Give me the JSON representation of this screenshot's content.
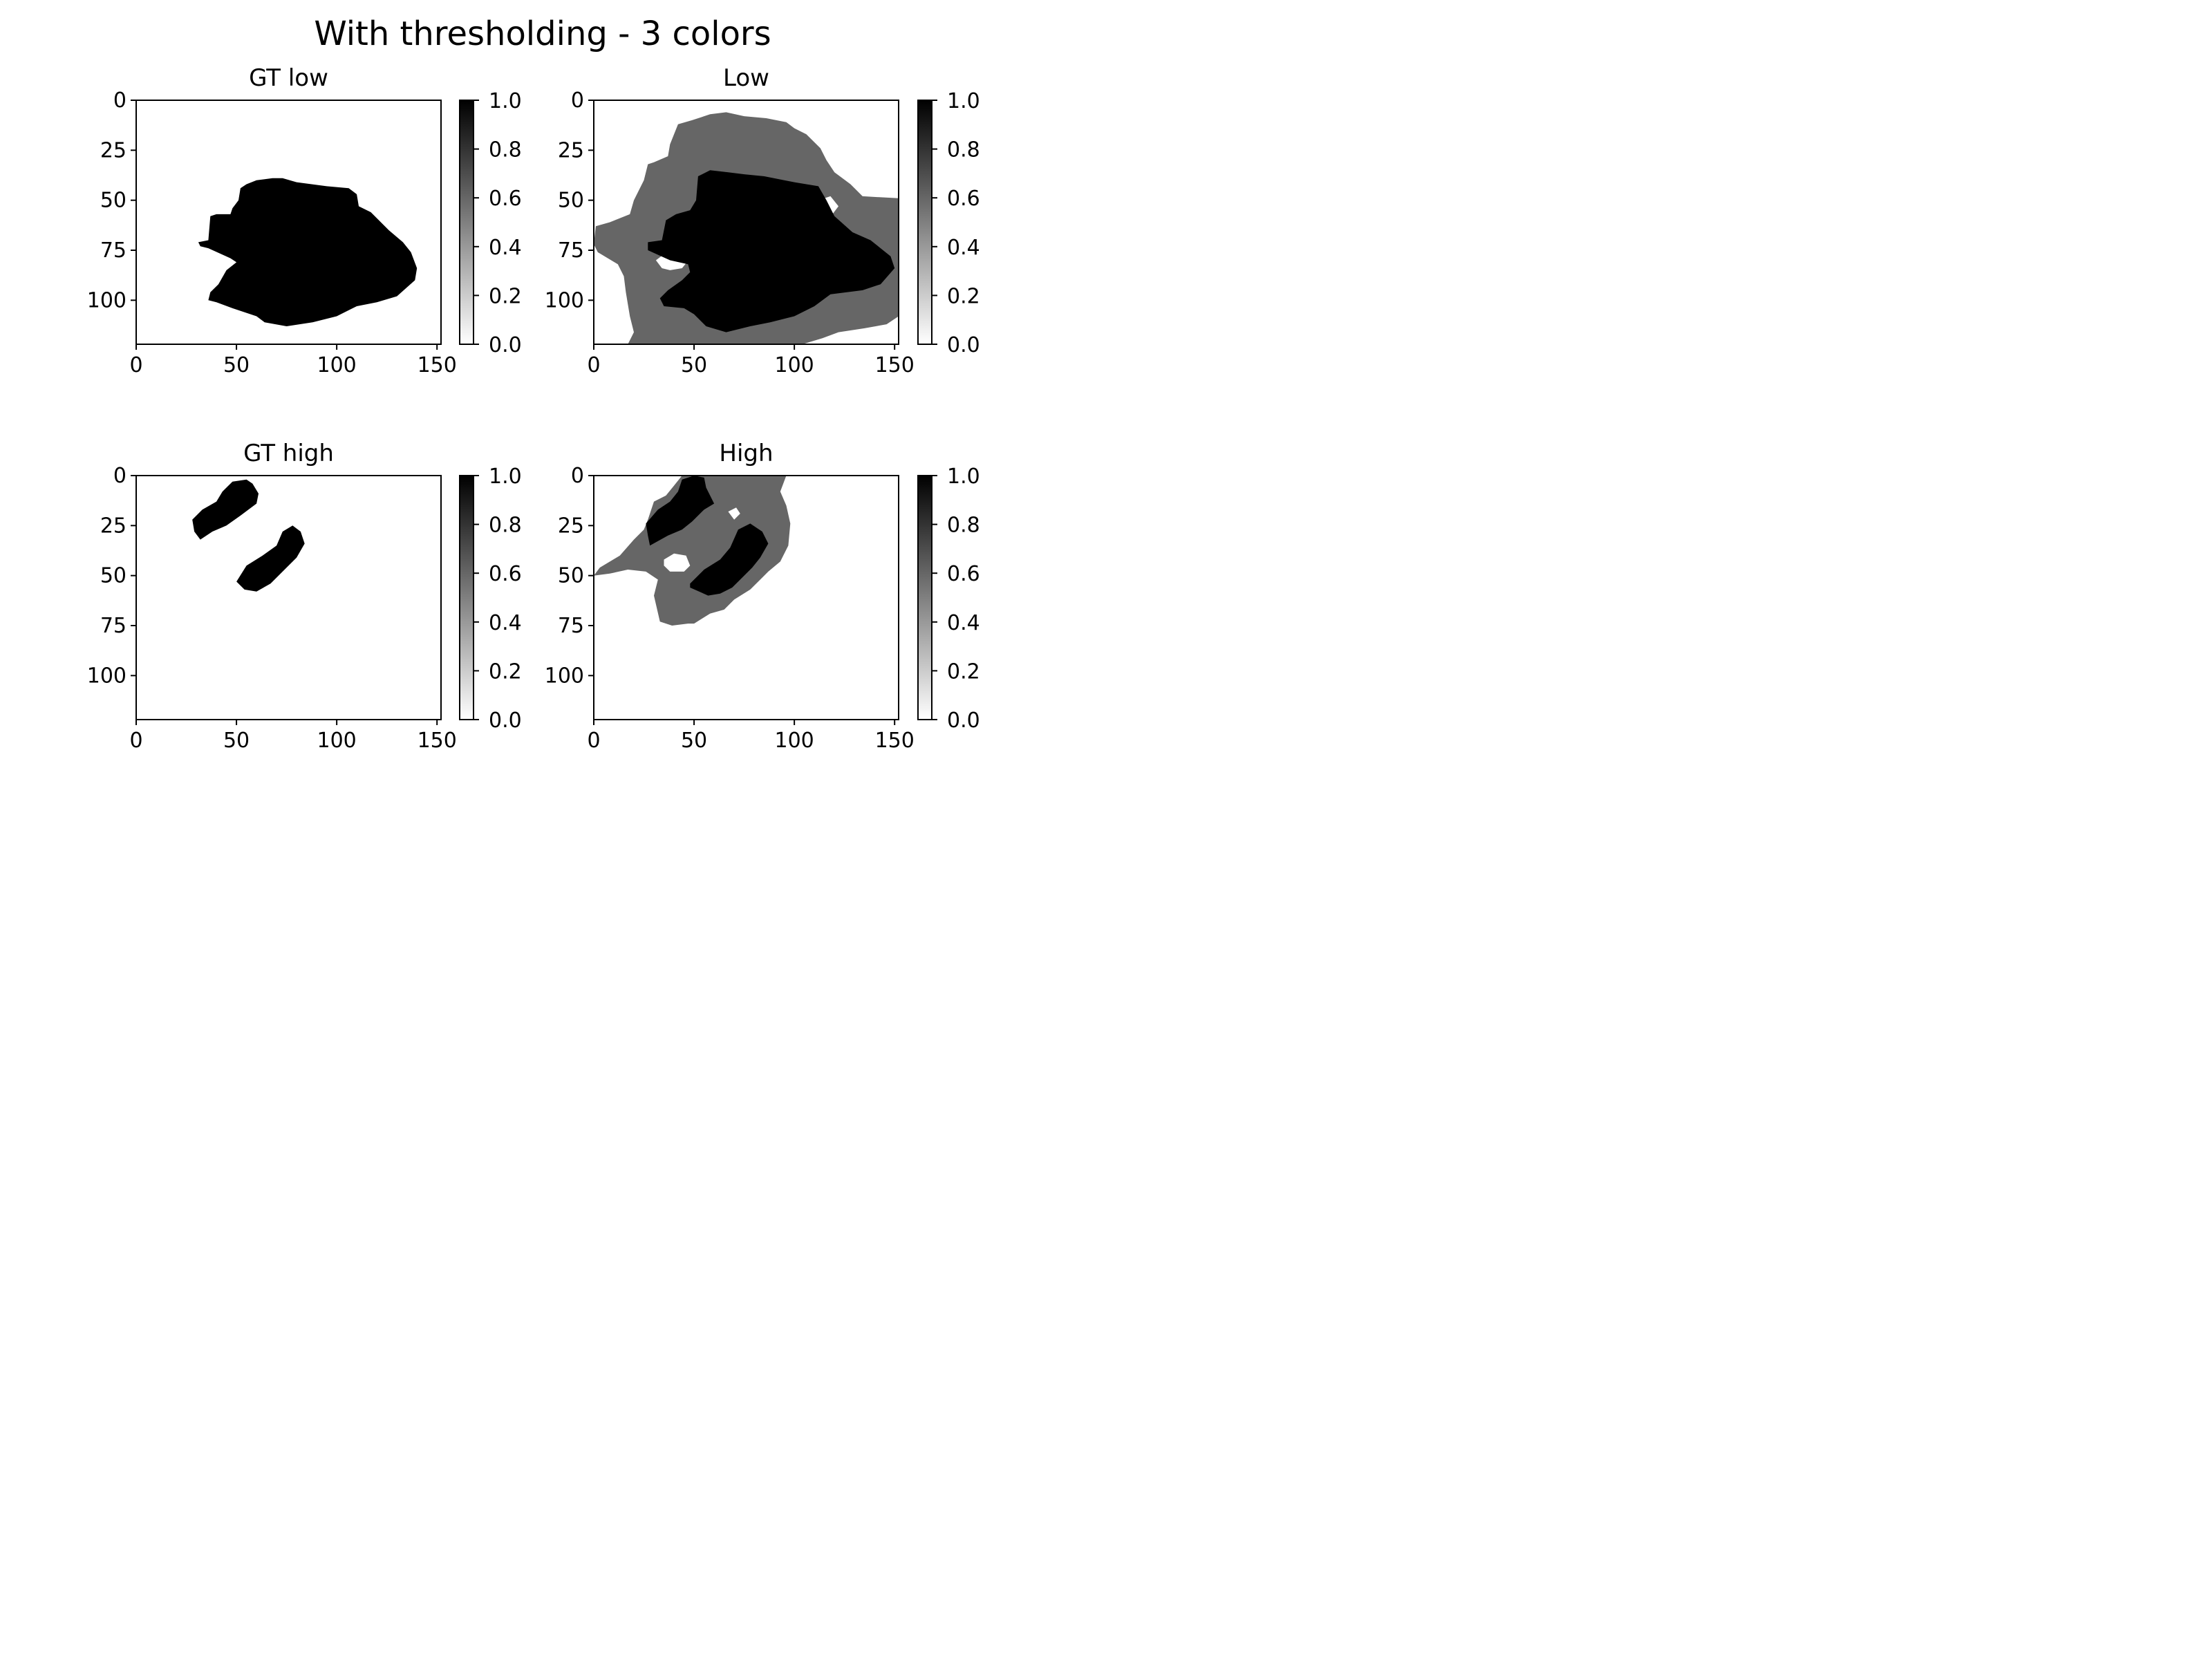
{
  "suptitle": "With thresholding - 3 colors",
  "colors": {
    "background": "#ffffff",
    "foreground": "#000000",
    "mid_gray": "#999999",
    "axes": "#000000"
  },
  "chart_data": [
    {
      "type": "heatmap",
      "title": "GT low",
      "xlim": [
        0,
        152
      ],
      "ylim": [
        122,
        0
      ],
      "xticks": [
        0,
        50,
        100,
        150
      ],
      "yticks": [
        0,
        25,
        50,
        75,
        100
      ],
      "xtick_labels": [
        "0",
        "50",
        "100",
        "150"
      ],
      "ytick_labels": [
        "0",
        "25",
        "50",
        "75",
        "100"
      ],
      "colorbar": {
        "cmap": "gray_r",
        "range": [
          0.0,
          1.0
        ],
        "ticks": [
          "0.0",
          "0.2",
          "0.4",
          "0.6",
          "0.8",
          "1.0"
        ]
      },
      "regions": [
        {
          "value": 1.0,
          "polygon": [
            [
              52,
              44
            ],
            [
              55,
              42
            ],
            [
              60,
              40
            ],
            [
              68,
              39
            ],
            [
              73,
              39
            ],
            [
              80,
              41
            ],
            [
              95,
              43
            ],
            [
              106,
              44
            ],
            [
              110,
              47
            ],
            [
              111,
              53
            ],
            [
              117,
              56
            ],
            [
              126,
              65
            ],
            [
              133,
              71
            ],
            [
              137,
              76
            ],
            [
              140,
              84
            ],
            [
              139,
              90
            ],
            [
              130,
              98
            ],
            [
              120,
              101
            ],
            [
              110,
              103
            ],
            [
              100,
              108
            ],
            [
              88,
              111
            ],
            [
              75,
              113
            ],
            [
              64,
              111
            ],
            [
              60,
              108
            ],
            [
              48,
              104
            ],
            [
              40,
              101
            ],
            [
              36,
              100
            ],
            [
              37,
              96
            ],
            [
              41,
              92
            ],
            [
              45,
              85
            ],
            [
              50,
              81
            ],
            [
              47,
              79
            ],
            [
              36,
              74
            ],
            [
              32,
              73
            ],
            [
              31,
              71
            ],
            [
              36,
              70
            ],
            [
              37,
              58
            ],
            [
              40,
              57
            ],
            [
              47,
              57
            ],
            [
              48,
              54
            ],
            [
              51,
              50
            ]
          ]
        }
      ]
    },
    {
      "type": "heatmap",
      "title": "Low",
      "xlim": [
        0,
        152
      ],
      "ylim": [
        122,
        0
      ],
      "xticks": [
        0,
        50,
        100,
        150
      ],
      "yticks": [
        0,
        25,
        50,
        75,
        100
      ],
      "xtick_labels": [
        "0",
        "50",
        "100",
        "150"
      ],
      "ytick_labels": [
        "0",
        "25",
        "50",
        "75",
        "100"
      ],
      "colorbar": {
        "cmap": "gray_r",
        "range": [
          0.0,
          1.0
        ],
        "ticks": [
          "0.0",
          "0.2",
          "0.4",
          "0.6",
          "0.8",
          "1.0"
        ]
      },
      "regions": [
        {
          "value": 0.6,
          "polygon": [
            [
              42,
              12
            ],
            [
              49,
              10
            ],
            [
              58,
              7
            ],
            [
              66,
              6
            ],
            [
              75,
              8
            ],
            [
              86,
              9
            ],
            [
              96,
              11
            ],
            [
              100,
              14
            ],
            [
              106,
              17
            ],
            [
              113,
              24
            ],
            [
              116,
              30
            ],
            [
              120,
              36
            ],
            [
              128,
              42
            ],
            [
              134,
              48
            ],
            [
              152,
              49
            ],
            [
              152,
              108
            ],
            [
              146,
              112
            ],
            [
              135,
              114
            ],
            [
              122,
              116
            ],
            [
              114,
              119
            ],
            [
              104,
              122
            ],
            [
              17,
              122
            ],
            [
              20,
              116
            ],
            [
              18,
              108
            ],
            [
              16,
              96
            ],
            [
              15,
              88
            ],
            [
              12,
              82
            ],
            [
              2,
              76
            ],
            [
              0,
              72
            ],
            [
              1,
              63
            ],
            [
              8,
              61
            ],
            [
              18,
              57
            ],
            [
              20,
              50
            ],
            [
              25,
              40
            ],
            [
              27,
              32
            ],
            [
              30,
              31
            ],
            [
              37,
              28
            ],
            [
              38,
              22
            ]
          ]
        },
        {
          "value": 0.0,
          "polygon": [
            [
              31,
              80
            ],
            [
              35,
              77
            ],
            [
              44,
              76
            ],
            [
              48,
              79
            ],
            [
              44,
              84
            ],
            [
              38,
              85
            ],
            [
              34,
              84
            ]
          ]
        },
        {
          "value": 0.0,
          "polygon": [
            [
              112,
              50
            ],
            [
              118,
              48
            ],
            [
              122,
              53
            ],
            [
              119,
              57
            ],
            [
              113,
              55
            ]
          ]
        },
        {
          "value": 1.0,
          "polygon": [
            [
              52,
              38
            ],
            [
              58,
              35
            ],
            [
              67,
              36
            ],
            [
              75,
              37
            ],
            [
              85,
              38
            ],
            [
              100,
              41
            ],
            [
              112,
              43
            ],
            [
              116,
              50
            ],
            [
              120,
              58
            ],
            [
              129,
              66
            ],
            [
              138,
              70
            ],
            [
              148,
              78
            ],
            [
              150,
              84
            ],
            [
              143,
              92
            ],
            [
              134,
              95
            ],
            [
              118,
              97
            ],
            [
              110,
              103
            ],
            [
              100,
              108
            ],
            [
              88,
              111
            ],
            [
              78,
              113
            ],
            [
              66,
              116
            ],
            [
              56,
              113
            ],
            [
              50,
              107
            ],
            [
              45,
              104
            ],
            [
              35,
              103
            ],
            [
              33,
              99
            ],
            [
              37,
              95
            ],
            [
              44,
              90
            ],
            [
              48,
              86
            ],
            [
              47,
              82
            ],
            [
              38,
              80
            ],
            [
              27,
              75
            ],
            [
              27,
              71
            ],
            [
              34,
              70
            ],
            [
              36,
              60
            ],
            [
              41,
              57
            ],
            [
              48,
              55
            ],
            [
              51,
              50
            ]
          ]
        }
      ]
    },
    {
      "type": "heatmap",
      "title": "GT high",
      "xlim": [
        0,
        152
      ],
      "ylim": [
        122,
        0
      ],
      "xticks": [
        0,
        50,
        100,
        150
      ],
      "yticks": [
        0,
        25,
        50,
        75,
        100
      ],
      "xtick_labels": [
        "0",
        "50",
        "100",
        "150"
      ],
      "ytick_labels": [
        "0",
        "25",
        "50",
        "75",
        "100"
      ],
      "colorbar": {
        "cmap": "gray_r",
        "range": [
          0.0,
          1.0
        ],
        "ticks": [
          "0.0",
          "0.2",
          "0.4",
          "0.6",
          "0.8",
          "1.0"
        ]
      },
      "regions": [
        {
          "value": 1.0,
          "polygon": [
            [
              28,
              22
            ],
            [
              33,
              17
            ],
            [
              40,
              13
            ],
            [
              43,
              8
            ],
            [
              48,
              3
            ],
            [
              55,
              2
            ],
            [
              58,
              4
            ],
            [
              61,
              9
            ],
            [
              60,
              14
            ],
            [
              52,
              20
            ],
            [
              45,
              25
            ],
            [
              38,
              28
            ],
            [
              32,
              32
            ],
            [
              29,
              28
            ]
          ]
        },
        {
          "value": 1.0,
          "polygon": [
            [
              50,
              53
            ],
            [
              55,
              45
            ],
            [
              63,
              40
            ],
            [
              70,
              35
            ],
            [
              73,
              28
            ],
            [
              78,
              25
            ],
            [
              82,
              28
            ],
            [
              84,
              34
            ],
            [
              80,
              41
            ],
            [
              73,
              48
            ],
            [
              67,
              54
            ],
            [
              60,
              58
            ],
            [
              54,
              57
            ]
          ]
        }
      ]
    },
    {
      "type": "heatmap",
      "title": "High",
      "xlim": [
        0,
        152
      ],
      "ylim": [
        122,
        0
      ],
      "xticks": [
        0,
        50,
        100,
        150
      ],
      "yticks": [
        0,
        25,
        50,
        75,
        100
      ],
      "xtick_labels": [
        "0",
        "50",
        "100",
        "150"
      ],
      "ytick_labels": [
        "0",
        "25",
        "50",
        "75",
        "100"
      ],
      "colorbar": {
        "cmap": "gray_r",
        "range": [
          0.0,
          1.0
        ],
        "ticks": [
          "0.0",
          "0.2",
          "0.4",
          "0.6",
          "0.8",
          "1.0"
        ]
      },
      "regions": [
        {
          "value": 0.6,
          "polygon": [
            [
              30,
              13
            ],
            [
              36,
              10
            ],
            [
              40,
              5
            ],
            [
              44,
              0
            ],
            [
              96,
              0
            ],
            [
              93,
              8
            ],
            [
              96,
              15
            ],
            [
              98,
              24
            ],
            [
              97,
              35
            ],
            [
              93,
              43
            ],
            [
              87,
              48
            ],
            [
              84,
              51
            ],
            [
              78,
              57
            ],
            [
              70,
              62
            ],
            [
              65,
              67
            ],
            [
              58,
              69
            ],
            [
              50,
              74
            ],
            [
              47,
              74
            ],
            [
              39,
              75
            ],
            [
              33,
              73
            ],
            [
              30,
              60
            ],
            [
              32,
              52
            ],
            [
              26,
              48
            ],
            [
              17,
              47
            ],
            [
              8,
              49
            ],
            [
              0,
              50
            ],
            [
              3,
              46
            ],
            [
              13,
              40
            ],
            [
              20,
              32
            ],
            [
              25,
              27
            ],
            [
              27,
              22
            ]
          ]
        },
        {
          "value": 0.0,
          "polygon": [
            [
              35,
              42
            ],
            [
              40,
              39
            ],
            [
              46,
              40
            ],
            [
              48,
              45
            ],
            [
              45,
              48
            ],
            [
              38,
              48
            ],
            [
              35,
              45
            ]
          ]
        },
        {
          "value": 0.0,
          "polygon": [
            [
              67,
              18
            ],
            [
              71,
              16
            ],
            [
              73,
              19
            ],
            [
              70,
              22
            ]
          ]
        },
        {
          "value": 1.0,
          "polygon": [
            [
              26,
              24
            ],
            [
              32,
              17
            ],
            [
              38,
              13
            ],
            [
              42,
              8
            ],
            [
              44,
              2
            ],
            [
              50,
              0
            ],
            [
              55,
              1
            ],
            [
              56,
              6
            ],
            [
              60,
              14
            ],
            [
              55,
              17
            ],
            [
              49,
              23
            ],
            [
              44,
              27
            ],
            [
              37,
              30
            ],
            [
              28,
              35
            ],
            [
              27,
              30
            ]
          ]
        },
        {
          "value": 1.0,
          "polygon": [
            [
              48,
              54
            ],
            [
              55,
              47
            ],
            [
              63,
              42
            ],
            [
              68,
              36
            ],
            [
              72,
              27
            ],
            [
              78,
              24
            ],
            [
              84,
              28
            ],
            [
              87,
              34
            ],
            [
              83,
              41
            ],
            [
              79,
              46
            ],
            [
              73,
              52
            ],
            [
              69,
              56
            ],
            [
              63,
              59
            ],
            [
              57,
              60
            ],
            [
              48,
              56
            ]
          ]
        }
      ]
    }
  ]
}
